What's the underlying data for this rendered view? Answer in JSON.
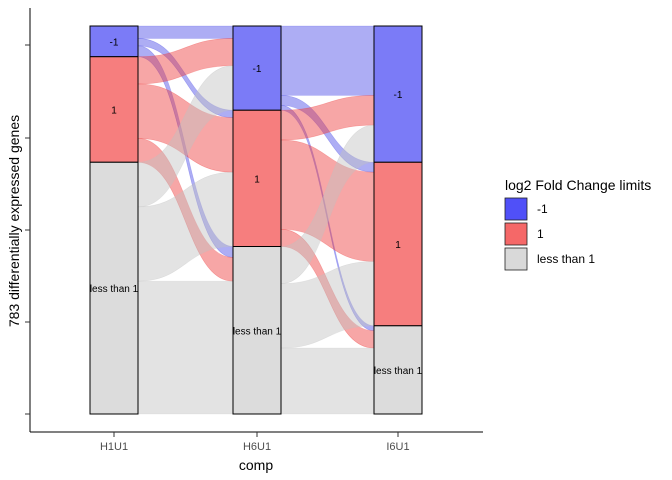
{
  "chart_data": {
    "type": "alluvial",
    "xlabel": "comp",
    "ylabel": "783 differentially expressed genes",
    "total": 783,
    "ylim": [
      0,
      783
    ],
    "axes": [
      "H1U1",
      "H6U1",
      "I6U1"
    ],
    "categories": [
      "-1",
      "1",
      "less than 1"
    ],
    "strata": [
      {
        "axis": "H1U1",
        "values": {
          "-1": 62,
          "1": 213,
          "less than 1": 508
        }
      },
      {
        "axis": "H6U1",
        "values": {
          "-1": 170,
          "1": 275,
          "less than 1": 338
        }
      },
      {
        "axis": "I6U1",
        "values": {
          "-1": 275,
          "1": 330,
          "less than 1": 178
        }
      }
    ],
    "stratum_labels": [
      "-1",
      "1",
      "less than 1"
    ],
    "legend": {
      "title": "log2 Fold Change limits",
      "position": "right",
      "entries": [
        {
          "label": "-1",
          "color": "#5050f8"
        },
        {
          "label": "1",
          "color": "#f56868"
        },
        {
          "label": "less than 1",
          "color": "#d9d9d9"
        }
      ]
    },
    "colors": {
      "-1": "#7b7bf7",
      "1": "#f67e7e",
      "less than 1": "#dcdcdc",
      "flow_-1": "#4a4ae6",
      "flow_1": "#ee3a3a",
      "flow_less": "#c0c0c0"
    },
    "grid": false,
    "y_ticks_count": 5
  }
}
